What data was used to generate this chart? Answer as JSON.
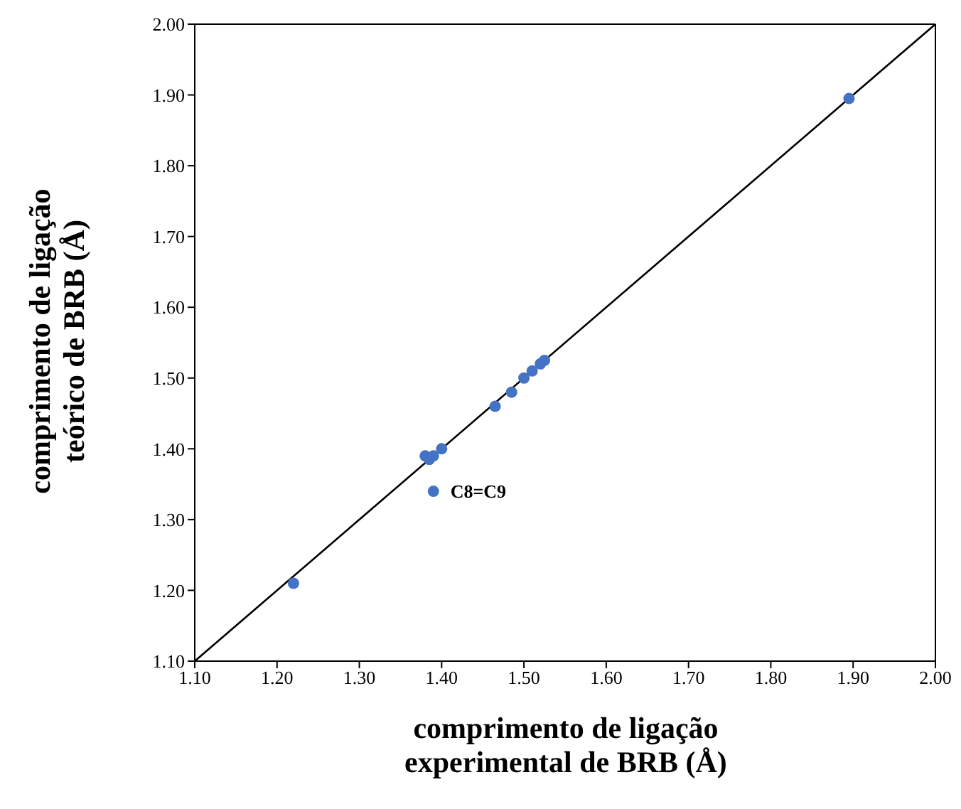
{
  "chart_data": {
    "type": "scatter",
    "xlabel": "comprimento de ligação\nexperimental de BRB (Å)",
    "ylabel": "comprimento de ligação\nteórico de BRB (Å)",
    "xlim": [
      1.1,
      2.0
    ],
    "ylim": [
      1.1,
      2.0
    ],
    "xticks": [
      {
        "value": 1.1,
        "label": "1.10"
      },
      {
        "value": 1.2,
        "label": "1.20"
      },
      {
        "value": 1.3,
        "label": "1.30"
      },
      {
        "value": 1.4,
        "label": "1.40"
      },
      {
        "value": 1.5,
        "label": "1.50"
      },
      {
        "value": 1.6,
        "label": "1.60"
      },
      {
        "value": 1.7,
        "label": "1.70"
      },
      {
        "value": 1.8,
        "label": "1.80"
      },
      {
        "value": 1.9,
        "label": "1.90"
      },
      {
        "value": 2.0,
        "label": "2.00"
      }
    ],
    "yticks": [
      {
        "value": 1.1,
        "label": "1.10"
      },
      {
        "value": 1.2,
        "label": "1.20"
      },
      {
        "value": 1.3,
        "label": "1.30"
      },
      {
        "value": 1.4,
        "label": "1.40"
      },
      {
        "value": 1.5,
        "label": "1.50"
      },
      {
        "value": 1.6,
        "label": "1.60"
      },
      {
        "value": 1.7,
        "label": "1.70"
      },
      {
        "value": 1.8,
        "label": "1.80"
      },
      {
        "value": 1.9,
        "label": "1.90"
      },
      {
        "value": 2.0,
        "label": "2.00"
      }
    ],
    "grid": false,
    "legend": false,
    "marker": "circle",
    "series": [
      {
        "type": "line",
        "color": "#000000",
        "marker": "none",
        "x": [
          1.1,
          2.0
        ],
        "values": [
          1.1,
          2.0
        ]
      },
      {
        "color": "#4472c4",
        "x": [
          1.22,
          1.38,
          1.385,
          1.39,
          1.4,
          1.39,
          1.465,
          1.485,
          1.5,
          1.51,
          1.52,
          1.525,
          1.895
        ],
        "values": [
          1.21,
          1.39,
          1.385,
          1.39,
          1.4,
          1.34,
          1.46,
          1.48,
          1.5,
          1.51,
          1.52,
          1.525,
          1.895
        ]
      }
    ],
    "annotations": [
      {
        "text": "C8=C9",
        "x": 1.39,
        "y": 1.34
      }
    ]
  }
}
